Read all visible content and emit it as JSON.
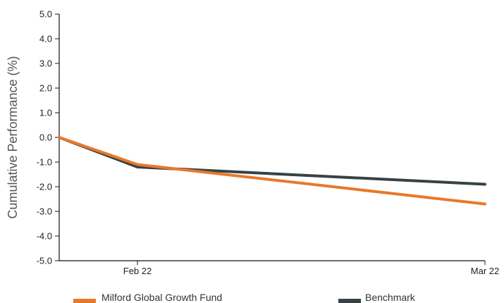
{
  "chart_data": {
    "type": "line",
    "title": "",
    "xlabel": "",
    "ylabel": "Cumulative Performance (%)",
    "x": [
      "",
      "Feb 22",
      "Mar 22"
    ],
    "x_tick_labels": [
      "Feb 22",
      "Mar 22"
    ],
    "ylim": [
      -5.0,
      5.0
    ],
    "y_ticks": [
      "5.0",
      "4.0",
      "3.0",
      "2.0",
      "1.0",
      "0.0",
      "-1.0",
      "-2.0",
      "-3.0",
      "-4.0",
      "-5.0"
    ],
    "grid": false,
    "legend_position": "bottom",
    "series": [
      {
        "name": "Milford Global Growth Fund",
        "values": [
          0.0,
          -1.1,
          -2.7
        ],
        "color": "#e8792a"
      },
      {
        "name": "Benchmark",
        "values": [
          0.0,
          -1.2,
          -1.9
        ],
        "color": "#374146"
      }
    ]
  }
}
